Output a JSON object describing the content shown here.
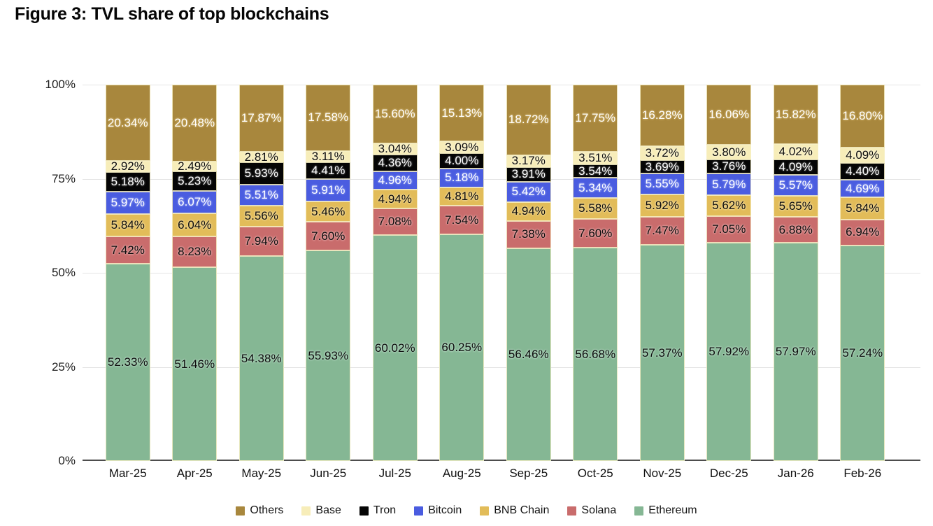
{
  "chart_data": {
    "type": "bar",
    "stacked": true,
    "title": "Figure 3: TVL share of top blockchains",
    "xlabel": "",
    "ylabel": "",
    "ylim": [
      0,
      100
    ],
    "grid": true,
    "legend_position": "bottom",
    "value_label_format": "percent_2dp",
    "yticks": [
      {
        "value": 0,
        "label": "0%"
      },
      {
        "value": 25,
        "label": "25%"
      },
      {
        "value": 50,
        "label": "50%"
      },
      {
        "value": 75,
        "label": "75%"
      },
      {
        "value": 100,
        "label": "100%"
      }
    ],
    "categories": [
      "Mar-25",
      "Apr-25",
      "May-25",
      "Jun-25",
      "Jul-25",
      "Aug-25",
      "Sep-25",
      "Oct-25",
      "Nov-25",
      "Dec-25",
      "Jan-26",
      "Feb-26"
    ],
    "stack_order_bottom_to_top": [
      "Ethereum",
      "Solana",
      "BNB Chain",
      "Bitcoin",
      "Tron",
      "Base",
      "Others"
    ],
    "series": [
      {
        "name": "Others",
        "color": "#a8873d",
        "label_color": "#ffffff",
        "halo_color": "#c3a55e",
        "values": [
          20.34,
          20.48,
          17.87,
          17.58,
          15.6,
          15.13,
          18.72,
          17.75,
          16.28,
          16.06,
          15.82,
          16.8
        ]
      },
      {
        "name": "Base",
        "color": "#f7edb9",
        "label_color": "#0d0d0d",
        "halo_color": "#faf3d2",
        "values": [
          2.92,
          2.49,
          2.81,
          3.11,
          3.04,
          3.09,
          3.17,
          3.51,
          3.72,
          3.8,
          4.02,
          4.09
        ]
      },
      {
        "name": "Tron",
        "color": "#050505",
        "label_color": "#ffffff",
        "halo_color": "#3a3a3a",
        "values": [
          5.18,
          5.23,
          5.93,
          4.41,
          4.36,
          4.0,
          3.91,
          3.54,
          3.69,
          3.76,
          4.09,
          4.4
        ]
      },
      {
        "name": "Bitcoin",
        "color": "#4a5ce0",
        "label_color": "#ffffff",
        "halo_color": "#7787eb",
        "values": [
          5.97,
          6.07,
          5.51,
          5.91,
          4.96,
          5.18,
          5.42,
          5.34,
          5.55,
          5.79,
          5.57,
          4.69
        ]
      },
      {
        "name": "BNB Chain",
        "color": "#e2bc59",
        "label_color": "#0d0d0d",
        "halo_color": "#edd492",
        "values": [
          5.84,
          6.04,
          5.56,
          5.46,
          4.94,
          4.81,
          4.94,
          5.58,
          5.92,
          5.62,
          5.65,
          5.84
        ]
      },
      {
        "name": "Solana",
        "color": "#c96c6c",
        "label_color": "#0d0d0d",
        "halo_color": "#dfa0a0",
        "values": [
          7.42,
          8.23,
          7.94,
          7.6,
          7.08,
          7.54,
          7.38,
          7.6,
          7.47,
          7.05,
          6.88,
          6.94
        ]
      },
      {
        "name": "Ethereum",
        "color": "#85b794",
        "label_color": "#0d0d0d",
        "halo_color": "#abd0b9",
        "values": [
          52.33,
          51.46,
          54.38,
          55.93,
          60.02,
          60.25,
          56.46,
          56.68,
          57.37,
          57.92,
          57.97,
          57.24
        ]
      }
    ]
  }
}
